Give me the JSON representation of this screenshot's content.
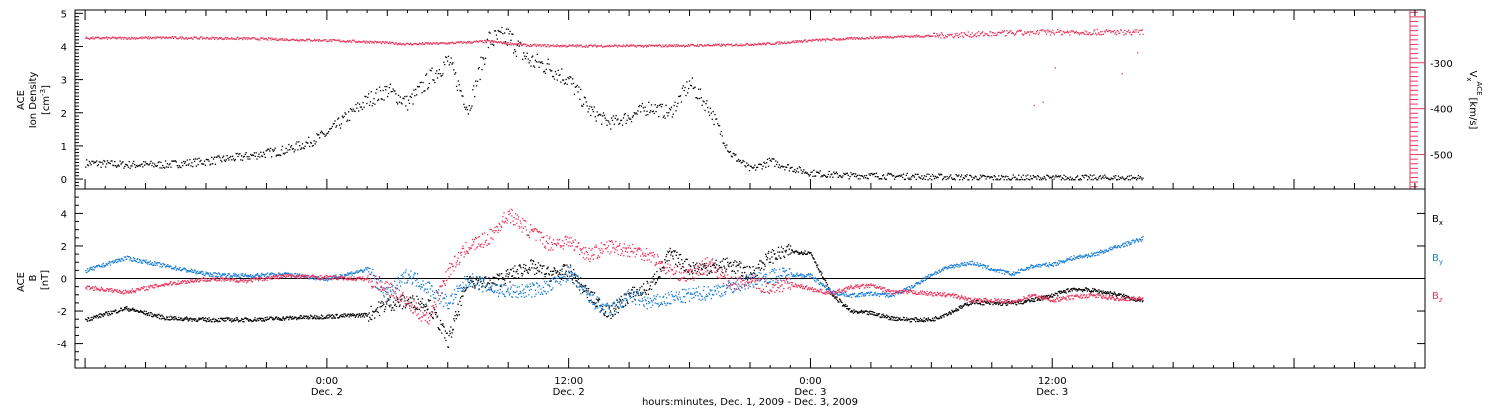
{
  "colors": {
    "black": "#000000",
    "red": "#e8385f",
    "blue": "#1a7fd8"
  },
  "time_axis": {
    "xlabel": "hours:minutes, Dec.  1, 2009 - Dec.  3, 2009",
    "range_hours": [
      -12.5,
      54.5
    ],
    "ticks": [
      {
        "hour": 0,
        "time": "0:00",
        "date": "Dec. 2"
      },
      {
        "hour": 12,
        "time": "12:00",
        "date": "Dec. 2"
      },
      {
        "hour": 24,
        "time": "0:00",
        "date": "Dec. 3"
      },
      {
        "hour": 36,
        "time": "12:00",
        "date": "Dec. 3"
      }
    ]
  },
  "chart_data": [
    {
      "type": "scatter",
      "panel": "density",
      "ylabel_line1": "ACE",
      "ylabel_line2": "Ion Density",
      "ylabel_units": "[cm",
      "ylabel_units_sup": "-3",
      "ylabel_units_end": "]",
      "ylim": [
        -0.3,
        5.1
      ],
      "yticks": [
        0,
        1,
        2,
        3,
        4,
        5
      ],
      "y2label_main": "V",
      "y2label_sub": "x",
      "y2label_sup": "ACE",
      "y2label_units": "[km/s]",
      "y2lim": [
        -575,
        -185
      ],
      "y2ticks": [
        -300,
        -400,
        -500
      ],
      "series": [
        {
          "color": "black",
          "axis": "left",
          "x": [
            -12,
            -10,
            -8,
            -6,
            -4,
            -2,
            -1,
            0,
            1,
            2,
            3,
            4,
            5,
            6,
            7,
            8,
            9,
            10,
            11,
            12,
            13,
            14,
            15,
            16,
            17,
            18,
            19,
            20,
            21,
            22,
            23,
            24,
            25,
            26,
            27,
            28,
            29,
            30,
            31,
            32,
            33,
            34,
            35,
            36,
            37,
            38,
            39,
            40,
            40.5
          ],
          "values": [
            0.5,
            0.45,
            0.45,
            0.55,
            0.7,
            0.9,
            1.1,
            1.4,
            1.9,
            2.4,
            2.7,
            2.3,
            3.0,
            3.6,
            2.1,
            4.2,
            4.3,
            3.6,
            3.4,
            3.0,
            2.1,
            1.7,
            1.9,
            2.2,
            2.0,
            2.9,
            2.1,
            0.8,
            0.3,
            0.55,
            0.35,
            0.2,
            0.15,
            0.12,
            0.12,
            0.1,
            0.1,
            0.08,
            0.08,
            0.06,
            0.05,
            0.05,
            0.05,
            0.05,
            0.05,
            0.05,
            0.05,
            0.05,
            0.05
          ]
        },
        {
          "color": "red",
          "axis": "right",
          "x": [
            -12,
            -10,
            -8,
            -6,
            -4,
            -2,
            0,
            2,
            4,
            6,
            8,
            10,
            12,
            14,
            16,
            18,
            20,
            22,
            24,
            26,
            28,
            30,
            32,
            34,
            36,
            38,
            40,
            40.5
          ],
          "values": [
            -245,
            -245,
            -244,
            -245,
            -246,
            -248,
            -250,
            -253,
            -258,
            -256,
            -252,
            -261,
            -262,
            -262,
            -262,
            -261,
            -260,
            -257,
            -250,
            -246,
            -242,
            -240,
            -237,
            -234,
            -232,
            -232,
            -232,
            -232
          ]
        }
      ]
    },
    {
      "type": "line",
      "panel": "magnetic",
      "ylabel_line1": "ACE",
      "ylabel_main": "B",
      "ylabel_units": "[nT]",
      "ylim": [
        -5.5,
        5.5
      ],
      "yticks": [
        -4,
        -2,
        0,
        2,
        4
      ],
      "legend": [
        "B",
        "B",
        "B"
      ],
      "legend_subs": [
        "x",
        "y",
        "z"
      ],
      "series": [
        {
          "name": "B",
          "sub": "x",
          "color": "black",
          "x": [
            -12,
            -10,
            -8,
            -6,
            -4,
            -2,
            0,
            2,
            3,
            4,
            5,
            6,
            7,
            8,
            9,
            10,
            11,
            12,
            13,
            14,
            15,
            16,
            17,
            18,
            19,
            20,
            21,
            22,
            23,
            24,
            25,
            26,
            27,
            28,
            29,
            30,
            31,
            32,
            33,
            34,
            35,
            36,
            37,
            38,
            39,
            40,
            40.5
          ],
          "values": [
            -2.5,
            -1.8,
            -2.4,
            -2.5,
            -2.5,
            -2.4,
            -2.3,
            -2.2,
            -1.5,
            -1.4,
            -1.5,
            -3.8,
            0.0,
            -0.3,
            0.2,
            0.8,
            0.3,
            0.5,
            -1.0,
            -2.1,
            -1.0,
            -0.5,
            1.5,
            0.7,
            0.7,
            0.9,
            0.3,
            1.4,
            1.7,
            1.6,
            -0.9,
            -2.0,
            -2.1,
            -2.4,
            -2.5,
            -2.5,
            -2.0,
            -1.4,
            -1.5,
            -1.5,
            -1.3,
            -1.0,
            -0.6,
            -0.7,
            -0.9,
            -1.2,
            -1.4
          ]
        },
        {
          "name": "B",
          "sub": "y",
          "color": "blue",
          "x": [
            -12,
            -10,
            -8,
            -6,
            -4,
            -2,
            0,
            2,
            3,
            4,
            5,
            6,
            7,
            8,
            9,
            10,
            11,
            12,
            13,
            14,
            15,
            16,
            17,
            18,
            19,
            20,
            21,
            22,
            23,
            24,
            25,
            26,
            27,
            28,
            29,
            30,
            31,
            32,
            33,
            34,
            35,
            36,
            37,
            38,
            39,
            40,
            40.5
          ],
          "values": [
            0.5,
            1.3,
            0.8,
            0.3,
            0.2,
            0.3,
            0.0,
            0.6,
            -1.0,
            0.3,
            -0.5,
            -1.5,
            0.0,
            -0.5,
            -0.8,
            -0.7,
            -0.5,
            0.4,
            -1.2,
            -2.0,
            -1.0,
            -1.5,
            -1.2,
            -1.0,
            -0.8,
            -0.5,
            -0.1,
            0.2,
            0.3,
            0.2,
            -0.8,
            -1.0,
            -0.9,
            -1.0,
            -0.5,
            0.3,
            0.8,
            1.0,
            0.6,
            0.3,
            0.8,
            0.9,
            1.3,
            1.5,
            1.9,
            2.3,
            2.5
          ]
        },
        {
          "name": "B",
          "sub": "z",
          "color": "red",
          "x": [
            -12,
            -10,
            -8,
            -6,
            -4,
            -2,
            0,
            2,
            3,
            4,
            5,
            6,
            7,
            8,
            9,
            10,
            11,
            12,
            13,
            14,
            15,
            16,
            17,
            18,
            19,
            20,
            21,
            22,
            23,
            24,
            25,
            26,
            27,
            28,
            29,
            30,
            31,
            32,
            33,
            34,
            35,
            36,
            37,
            38,
            39,
            40,
            40.5
          ],
          "values": [
            -0.5,
            -0.8,
            -0.3,
            0.0,
            -0.1,
            0.2,
            0.1,
            0.0,
            -0.5,
            -1.5,
            -2.5,
            0.5,
            2.0,
            2.5,
            4.0,
            3.0,
            2.2,
            2.3,
            1.5,
            2.0,
            1.8,
            1.5,
            0.5,
            0.2,
            1.0,
            -0.3,
            -0.2,
            -0.5,
            -0.3,
            -0.6,
            -0.9,
            -0.5,
            -0.4,
            -0.8,
            -0.8,
            -0.9,
            -1.0,
            -1.3,
            -1.3,
            -1.4,
            -1.0,
            -1.3,
            -1.1,
            -1.0,
            -1.2,
            -1.2,
            -1.2
          ]
        }
      ]
    }
  ]
}
